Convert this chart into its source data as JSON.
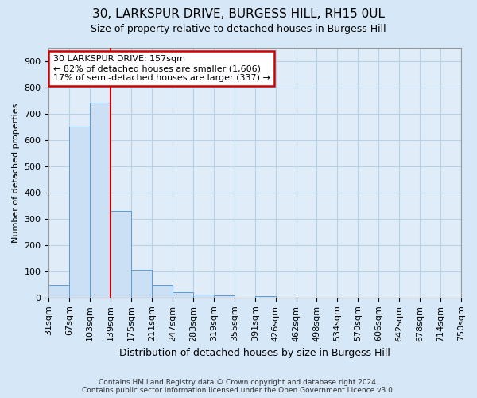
{
  "title": "30, LARKSPUR DRIVE, BURGESS HILL, RH15 0UL",
  "subtitle": "Size of property relative to detached houses in Burgess Hill",
  "xlabel": "Distribution of detached houses by size in Burgess Hill",
  "ylabel": "Number of detached properties",
  "footer_line1": "Contains HM Land Registry data © Crown copyright and database right 2024.",
  "footer_line2": "Contains public sector information licensed under the Open Government Licence v3.0.",
  "bin_labels": [
    "31sqm",
    "67sqm",
    "103sqm",
    "139sqm",
    "175sqm",
    "211sqm",
    "247sqm",
    "283sqm",
    "319sqm",
    "355sqm",
    "391sqm",
    "426sqm",
    "462sqm",
    "498sqm",
    "534sqm",
    "570sqm",
    "606sqm",
    "642sqm",
    "678sqm",
    "714sqm",
    "750sqm"
  ],
  "bar_heights": [
    47,
    650,
    740,
    330,
    105,
    47,
    22,
    13,
    8,
    0,
    5,
    0,
    0,
    0,
    0,
    0,
    0,
    0,
    0,
    0
  ],
  "bar_color": "#cce0f5",
  "bar_edge_color": "#5b9bd5",
  "grid_color": "#b8d0e8",
  "background_color": "#d6e8f8",
  "plot_bg_color": "#e0edf8",
  "red_line_color": "#cc0000",
  "red_line_x": 2.5,
  "annotation_text_line1": "30 LARKSPUR DRIVE: 157sqm",
  "annotation_text_line2": "← 82% of detached houses are smaller (1,606)",
  "annotation_text_line3": "17% of semi-detached houses are larger (337) →",
  "annotation_box_color": "#cc0000",
  "ylim": [
    0,
    950
  ],
  "yticks": [
    0,
    100,
    200,
    300,
    400,
    500,
    600,
    700,
    800,
    900
  ],
  "title_fontsize": 11,
  "subtitle_fontsize": 9,
  "xlabel_fontsize": 9,
  "ylabel_fontsize": 8,
  "tick_fontsize": 8,
  "annotation_fontsize": 8
}
